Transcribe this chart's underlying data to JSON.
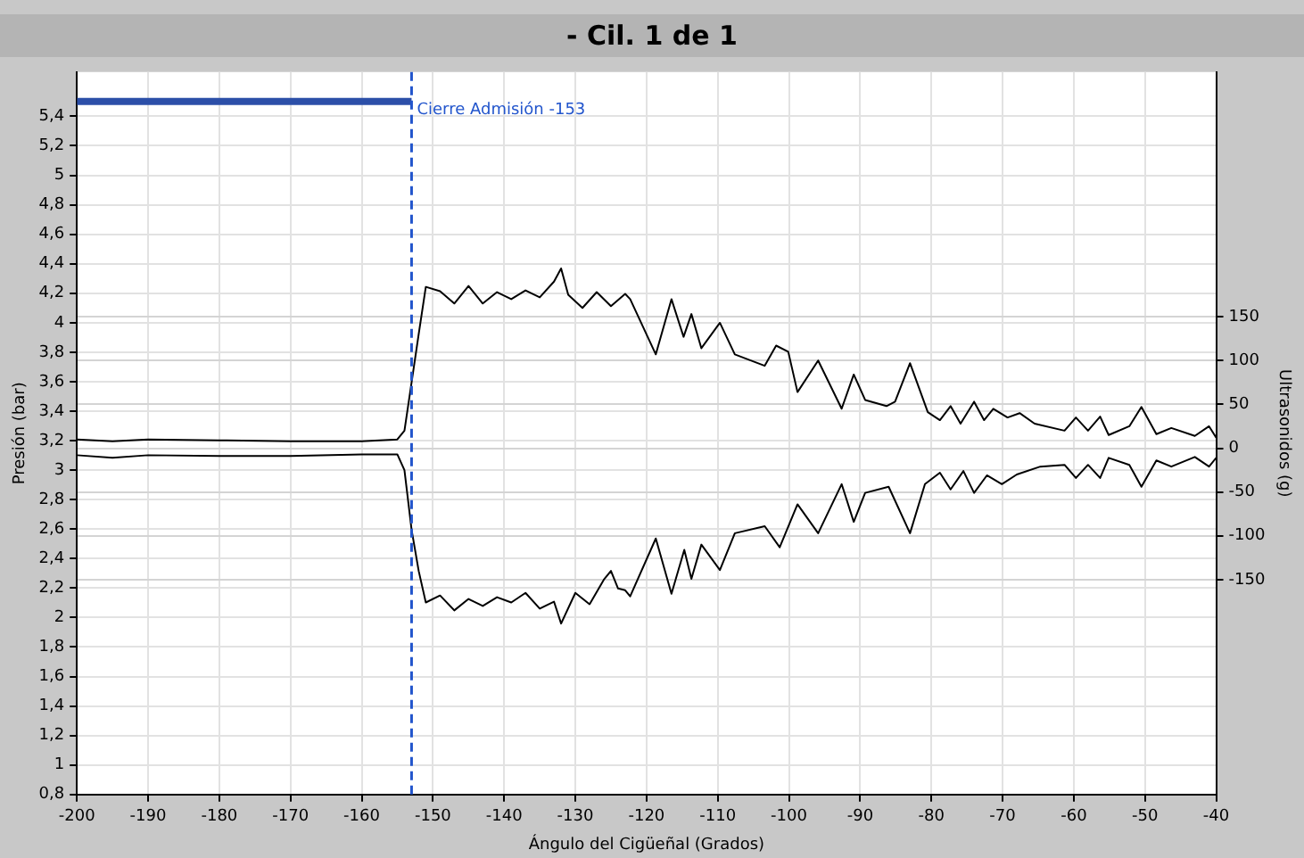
{
  "chart_data": {
    "type": "line",
    "title": "- Cil. 1 de 1",
    "xlabel": "Ángulo del Cigüeñal (Grados)",
    "ylabel": "Presión (bar)",
    "y2label": "Ultrasonidos (g)",
    "xlim": [
      -200,
      -40
    ],
    "xticks": [
      -200,
      -190,
      -180,
      -170,
      -160,
      -150,
      -140,
      -130,
      -120,
      -110,
      -100,
      -90,
      -80,
      -70,
      -60,
      -50,
      -40
    ],
    "ylim": [
      0.8,
      5.7
    ],
    "yticks": [
      {
        "value": 0.8,
        "label": "0,8"
      },
      1,
      {
        "value": 1.2,
        "label": "1,2"
      },
      {
        "value": 1.4,
        "label": "1,4"
      },
      {
        "value": 1.6,
        "label": "1,6"
      },
      {
        "value": 1.8,
        "label": "1,8"
      },
      2,
      {
        "value": 2.2,
        "label": "2,2"
      },
      {
        "value": 2.4,
        "label": "2,4"
      },
      {
        "value": 2.6,
        "label": "2,6"
      },
      {
        "value": 2.8,
        "label": "2,8"
      },
      3,
      {
        "value": 3.2,
        "label": "3,2"
      },
      {
        "value": 3.4,
        "label": "3,4"
      },
      {
        "value": 3.6,
        "label": "3,6"
      },
      {
        "value": 3.8,
        "label": "3,8"
      },
      4,
      {
        "value": 4.2,
        "label": "4,2"
      },
      {
        "value": 4.4,
        "label": "4,4"
      },
      {
        "value": 4.6,
        "label": "4,6"
      },
      {
        "value": 4.8,
        "label": "4,8"
      },
      5,
      {
        "value": 5.2,
        "label": "5,2"
      },
      {
        "value": 5.4,
        "label": "5,4"
      }
    ],
    "y2lim": [
      -395,
      429
    ],
    "y2ticks": [
      -150,
      -100,
      -50,
      0,
      50,
      100,
      150
    ],
    "grid": true,
    "legend": false,
    "marker": "none",
    "line_style": "solid",
    "ref_lines": [
      {
        "axis": "x",
        "value": -153,
        "label": "Cierre Admisión -153",
        "color": "#2255cc",
        "line_style": "dashed"
      }
    ],
    "series": [
      {
        "color": "#2c4fa8",
        "axis": "y",
        "x": [
          -200,
          -153
        ],
        "values": [
          5.5,
          5.5
        ]
      },
      {
        "color": "#000000",
        "axis": "y2",
        "x": [
          -200,
          -195,
          -190,
          -180,
          -170,
          -160,
          -155,
          -154,
          -153,
          -152,
          -151,
          -149,
          -147,
          -145,
          -143,
          -141,
          -139,
          -137,
          -135,
          -133,
          -132,
          -131,
          -129,
          -127,
          -125,
          -123,
          -122.3,
          -118.7,
          -116.5,
          -114.8,
          -113.7,
          -112.3,
          -109.7,
          -107.6,
          -103.4,
          -101.8,
          -100.1,
          -98.8,
          -95.9,
          -92.6,
          -90.9,
          -89.3,
          -86.3,
          -85.1,
          -83,
          -80.5,
          -78.8,
          -77.3,
          -75.9,
          -74,
          -72.6,
          -71.3,
          -69.3,
          -67.6,
          -65.5,
          -61.3,
          -59.7,
          -58,
          -56.3,
          -55.1,
          -52.2,
          -50.5,
          -48.4,
          -46.3,
          -43,
          -41,
          -40
        ],
        "values": [
          10,
          8,
          10,
          9,
          8,
          8,
          10,
          20,
          75,
          130,
          184,
          179,
          165,
          185,
          165,
          178,
          170,
          180,
          172,
          190,
          205,
          175,
          160,
          178,
          162,
          176,
          170,
          107,
          170,
          127,
          153,
          114,
          143,
          107,
          94,
          117,
          110,
          64,
          100,
          45,
          84,
          55,
          48,
          53,
          97,
          41,
          32,
          48,
          28,
          53,
          32,
          45,
          35,
          40,
          28,
          20,
          35,
          20,
          36,
          15,
          25,
          47,
          16,
          23,
          14,
          25,
          12
        ]
      },
      {
        "color": "#000000",
        "axis": "y2",
        "x": [
          -200,
          -195,
          -190,
          -180,
          -170,
          -160,
          -155,
          -154,
          -153,
          -152,
          -151,
          -149,
          -147,
          -145,
          -143,
          -141,
          -139,
          -137,
          -135,
          -133,
          -132,
          -130,
          -128,
          -126,
          -125,
          -124,
          -123,
          -122.3,
          -118.7,
          -116.5,
          -114.7,
          -113.7,
          -112.3,
          -109.7,
          -107.6,
          -103.4,
          -101.3,
          -98.8,
          -95.9,
          -92.6,
          -90.9,
          -89.3,
          -86,
          -83,
          -80.9,
          -78.8,
          -77.3,
          -75.5,
          -74,
          -72.2,
          -70.1,
          -68,
          -64.7,
          -61.3,
          -59.7,
          -58,
          -56.3,
          -55.1,
          -52.2,
          -50.5,
          -48.4,
          -46.3,
          -43,
          -41,
          -40
        ],
        "values": [
          -8,
          -11,
          -8,
          -9,
          -9,
          -7,
          -7,
          -25,
          -93,
          -140,
          -176,
          -168,
          -185,
          -172,
          -180,
          -170,
          -176,
          -165,
          -183,
          -175,
          -200,
          -165,
          -178,
          -150,
          -140,
          -160,
          -162,
          -169,
          -103,
          -166,
          -116,
          -149,
          -110,
          -139,
          -97,
          -89,
          -113,
          -64,
          -97,
          -41,
          -84,
          -51,
          -44,
          -97,
          -41,
          -28,
          -47,
          -26,
          -51,
          -31,
          -41,
          -30,
          -21,
          -19,
          -34,
          -19,
          -34,
          -11,
          -19,
          -44,
          -14,
          -21,
          -10,
          -21,
          -11
        ]
      }
    ]
  }
}
